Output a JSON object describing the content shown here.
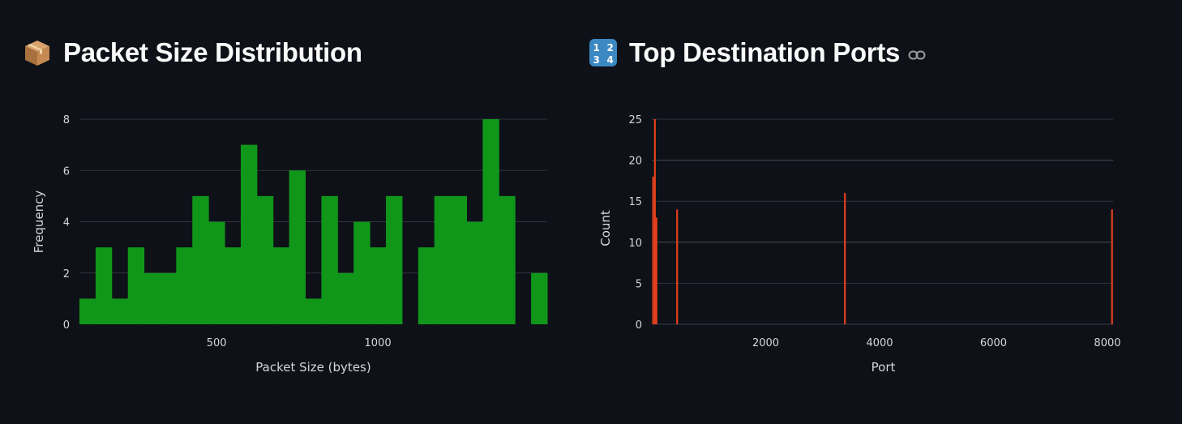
{
  "left_panel": {
    "title": "Packet Size Distribution",
    "title_icon": "package-icon"
  },
  "right_panel": {
    "title": "Top Destination Ports",
    "title_icon": "input-numbers-icon",
    "link_icon": "link-icon"
  },
  "colors": {
    "background": "#0e1117",
    "histogram_bar": "#10971a",
    "port_bar": "#e2401c",
    "grid": "#31333f",
    "text": "#fafafa"
  },
  "chart_data": [
    {
      "type": "bar",
      "subtype": "histogram",
      "title": "",
      "xlabel": "Packet Size (bytes)",
      "ylabel": "Frequency",
      "bin_width": 50,
      "bin_starts": [
        75,
        125,
        175,
        225,
        275,
        325,
        375,
        425,
        475,
        525,
        575,
        625,
        675,
        725,
        775,
        825,
        875,
        925,
        975,
        1025,
        1075,
        1125,
        1175,
        1225,
        1275,
        1325,
        1375,
        1425,
        1475
      ],
      "values": [
        1,
        3,
        1,
        3,
        2,
        2,
        3,
        5,
        4,
        3,
        7,
        5,
        3,
        6,
        1,
        5,
        2,
        4,
        3,
        5,
        0,
        3,
        5,
        5,
        4,
        8,
        5,
        0,
        2
      ],
      "xlim": [
        75,
        1525
      ],
      "ylim": [
        0,
        8
      ],
      "x_ticks": [
        500,
        1000
      ],
      "y_ticks": [
        0,
        2,
        4,
        6,
        8
      ],
      "grid": true
    },
    {
      "type": "bar",
      "title": "",
      "xlabel": "Port",
      "ylabel": "Count",
      "x": [
        22,
        53,
        80,
        443,
        3389,
        8080
      ],
      "values": [
        18,
        25,
        13,
        14,
        16,
        14
      ],
      "xlim": [
        0,
        8100
      ],
      "ylim": [
        0,
        25
      ],
      "x_ticks": [
        2000,
        4000,
        6000,
        8000
      ],
      "y_ticks": [
        0,
        5,
        10,
        15,
        20,
        25
      ],
      "grid": true
    }
  ]
}
